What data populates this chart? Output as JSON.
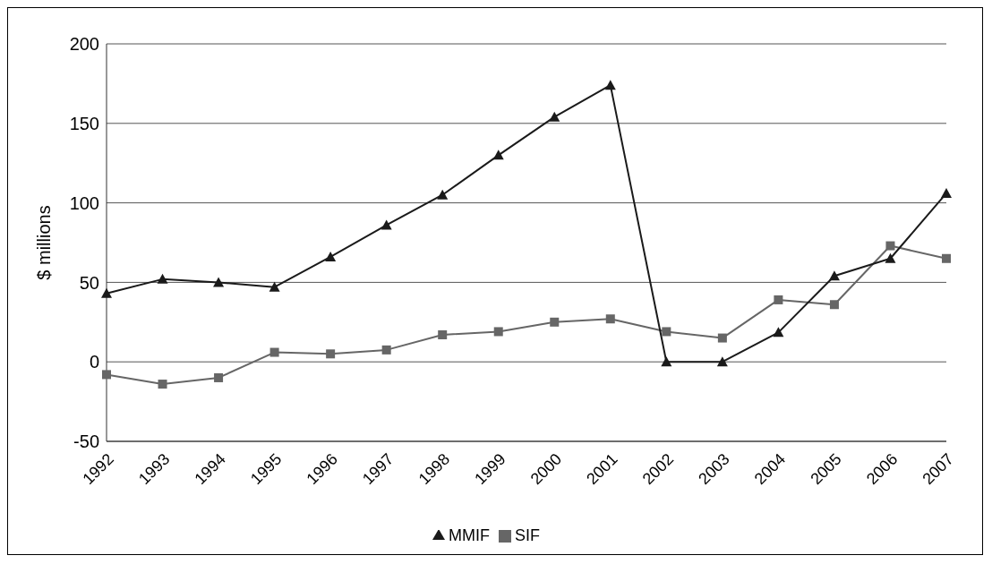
{
  "chart_data": {
    "type": "line",
    "ylabel": "$ millions",
    "categories": [
      "1992",
      "1993",
      "1994",
      "1995",
      "1996",
      "1997",
      "1998",
      "1999",
      "2000",
      "2001",
      "2002",
      "2003",
      "2004",
      "2005",
      "2006",
      "2007"
    ],
    "series": [
      {
        "name": "SIF",
        "color": "#666666",
        "marker": "square",
        "values": [
          -8,
          -14,
          -10,
          6,
          5,
          7.5,
          17,
          19,
          25,
          27,
          19,
          15,
          39,
          36,
          73,
          65
        ]
      },
      {
        "name": "MMIF",
        "color": "#1a1a1a",
        "marker": "triangle",
        "values": [
          43,
          52,
          50,
          47,
          66,
          86,
          105,
          130,
          154,
          174,
          0,
          0,
          18.5,
          54,
          65,
          106
        ]
      }
    ],
    "ylim": [
      -50,
      200
    ],
    "yticks": [
      -50,
      0,
      50,
      100,
      150,
      200
    ],
    "grid": "y",
    "legend": "bottom",
    "line_style": "solid"
  }
}
